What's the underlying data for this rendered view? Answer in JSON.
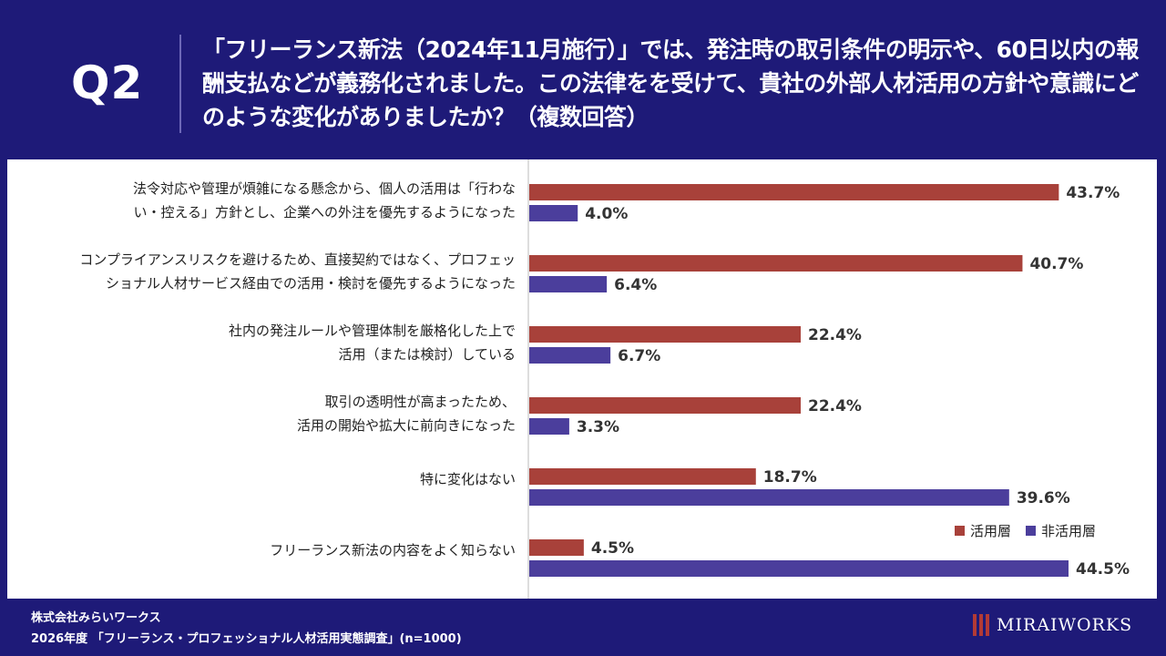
{
  "header": {
    "q_label": "Q2",
    "question": "「フリーランス新法（2024年11月施行）」では、発注時の取引条件の明示や、60日以内の報酬支払などが義務化されました。この法律をを受けて、貴社の外部人材活用の方針や意識にどのような変化がありましたか？（複数回答）"
  },
  "legend": {
    "series_1": "活用層",
    "series_2": "非活用層"
  },
  "footer": {
    "company": "株式会社みらいワークス",
    "survey": "2026年度 「フリーランス・プロフェッショナル人材活用実態調査」(n=1000)",
    "logo": "MIRAIWORKS"
  },
  "colors": {
    "background": "#1e1a78",
    "series_1": "#a8413a",
    "series_2": "#4b3e9c"
  },
  "chart_data": {
    "type": "bar",
    "orientation": "horizontal",
    "categories": [
      [
        "法令対応や管理が煩雑になる懸念から、個人の活用は「行わな",
        "い・控える」方針とし、企業への外注を優先するようになった"
      ],
      [
        "コンプライアンスリスクを避けるため、直接契約ではなく、プロフェッ",
        "ショナル人材サービス経由での活用・検討を優先するようになった"
      ],
      [
        "社内の発注ルールや管理体制を厳格化した上で",
        "活用（または検討）している"
      ],
      [
        "取引の透明性が高まったため、",
        "活用の開始や拡大に前向きになった"
      ],
      [
        "特に変化はない"
      ],
      [
        "フリーランス新法の内容をよく知らない"
      ]
    ],
    "series": [
      {
        "name": "活用層",
        "values": [
          43.7,
          40.7,
          22.4,
          22.4,
          18.7,
          4.5
        ]
      },
      {
        "name": "非活用層",
        "values": [
          4.0,
          6.4,
          6.7,
          3.3,
          39.6,
          44.5
        ]
      }
    ],
    "value_suffix": "%",
    "xlim": [
      0,
      44.5
    ],
    "legend_position": "right"
  }
}
